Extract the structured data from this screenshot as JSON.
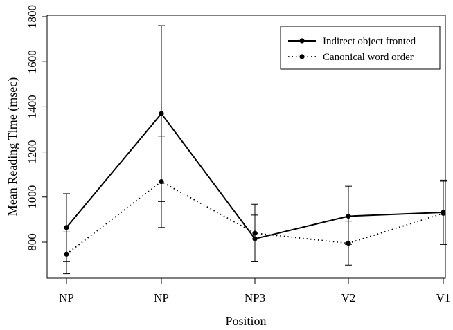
{
  "chart_data": {
    "type": "line",
    "xlabel": "Position",
    "ylabel": "Mean Reading Time (msec)",
    "categories": [
      "NP",
      "NP",
      "NP3",
      "V2",
      "V1"
    ],
    "ylim": [
      630,
      1800
    ],
    "yticks": [
      800,
      1000,
      1200,
      1400,
      1600,
      1800
    ],
    "grid": false,
    "legend_position": "top-right",
    "series": [
      {
        "name": "Indirect object fronted",
        "style": "solid",
        "values": [
          865,
          1370,
          815,
          915,
          932
        ],
        "err_low": [
          715,
          980,
          715,
          790,
          790
        ],
        "err_high": [
          1015,
          1760,
          920,
          1048,
          1070
        ]
      },
      {
        "name": "Canonical word order",
        "style": "dotted",
        "values": [
          747,
          1068,
          840,
          795,
          928
        ],
        "err_low": [
          660,
          865,
          715,
          698,
          790
        ],
        "err_high": [
          845,
          1270,
          968,
          893,
          1075
        ]
      }
    ],
    "colors": {
      "line": "#000000",
      "axis": "#000000",
      "background": "#ffffff"
    }
  }
}
